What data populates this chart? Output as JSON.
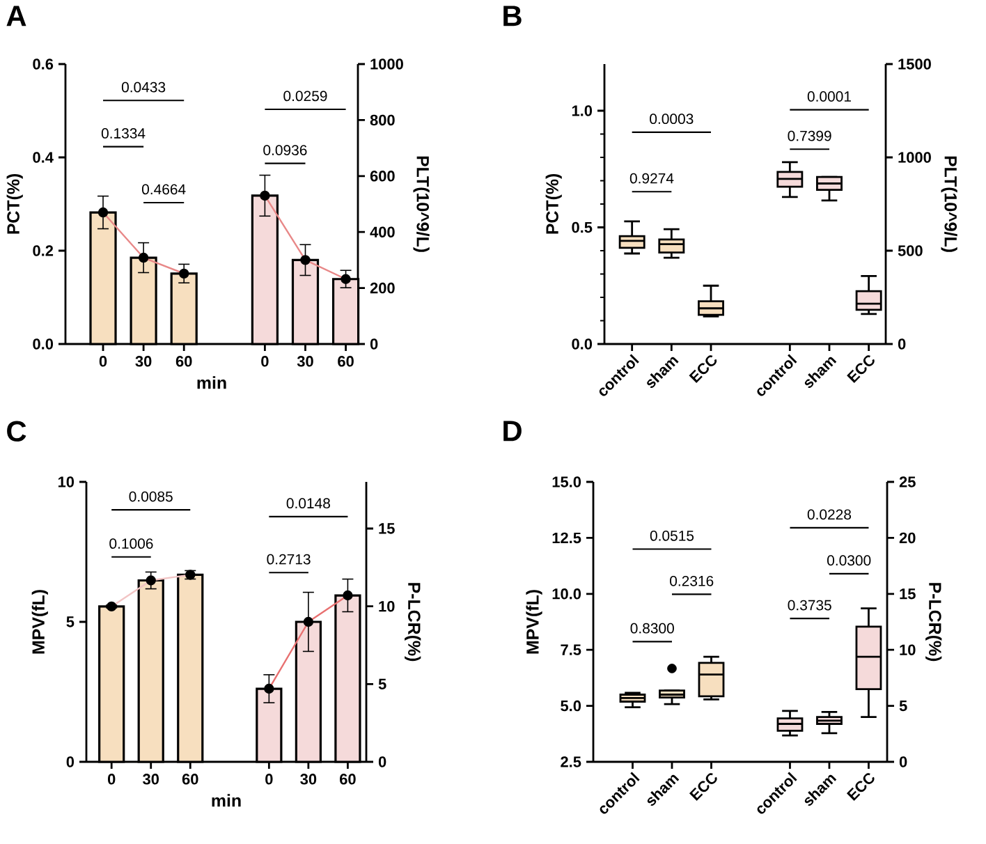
{
  "chart_data": [
    {
      "type": "bar",
      "title": "A",
      "xlabel": "min",
      "ylabel": "PCT(%)",
      "y2label": "PLT(10^9/L)",
      "categories": [
        "0",
        "30",
        "60",
        null,
        "0",
        "30",
        "60"
      ],
      "series": [
        {
          "color": "#f7dfbf",
          "values": [
            0.282,
            0.185,
            0.151,
            null,
            null,
            null,
            null
          ],
          "errors": [
            0.035,
            0.032,
            0.02,
            null,
            null,
            null,
            null
          ]
        },
        {
          "color": "#f5dada",
          "axis": "y2",
          "values": [
            null,
            null,
            null,
            null,
            530,
            300,
            232
          ],
          "errors": [
            null,
            null,
            null,
            null,
            73,
            55,
            31
          ]
        },
        {
          "type": "line",
          "color": "#e88888",
          "marker": "circle",
          "values": [
            0.282,
            0.185,
            0.151,
            null,
            null,
            null,
            null
          ]
        },
        {
          "type": "line",
          "color": "#e88888",
          "marker": "circle",
          "axis": "y2",
          "values": [
            null,
            null,
            null,
            null,
            530,
            300,
            232
          ]
        }
      ],
      "ylim": [
        0,
        0.6
      ],
      "yticks": [
        {
          "value": 0,
          "label": "0.0"
        },
        {
          "value": 0.2,
          "label": "0.2"
        },
        {
          "value": 0.4,
          "label": "0.4"
        },
        {
          "value": 0.6,
          "label": "0.6"
        }
      ],
      "y2lim": [
        0,
        1000
      ],
      "y2ticks": [
        0,
        200,
        400,
        600,
        800,
        1000
      ],
      "annotations": [
        "0.0433",
        "0.1334",
        "0.4664",
        "0.0259",
        "0.0936"
      ]
    },
    {
      "type": "box",
      "title": "B",
      "ylabel": "PCT(%)",
      "y2label": "PLT(10^9/L)",
      "categories": [
        "control",
        "sham",
        "ECC",
        null,
        "control",
        "sham",
        "ECC"
      ],
      "series": [
        {
          "color": "#f7dfbf",
          "boxes": [
            {
              "low": 0.388,
              "q1": 0.412,
              "median": 0.442,
              "q3": 0.462,
              "high": 0.526
            },
            {
              "low": 0.37,
              "q1": 0.392,
              "median": 0.428,
              "q3": 0.448,
              "high": 0.492
            },
            {
              "low": 0.118,
              "q1": 0.125,
              "median": 0.153,
              "q3": 0.183,
              "high": 0.25
            },
            null,
            null,
            null,
            null
          ]
        },
        {
          "color": "#f5dada",
          "axis": "y2",
          "boxes": [
            null,
            null,
            null,
            null,
            {
              "low": 788,
              "q1": 843,
              "median": 885,
              "q3": 922,
              "high": 974
            },
            {
              "low": 769,
              "q1": 826,
              "median": 860,
              "q3": 895,
              "high": 895
            },
            {
              "low": 161,
              "q1": 183,
              "median": 216,
              "q3": 283,
              "high": 364
            }
          ]
        }
      ],
      "ylim": [
        0,
        1.2
      ],
      "yticks": [
        {
          "value": 0,
          "label": "0.0"
        },
        {
          "value": 0.5,
          "label": "0.5"
        },
        {
          "value": 1,
          "label": "1.0"
        }
      ],
      "y2lim": [
        0,
        1500
      ],
      "y2ticks": [
        0,
        500,
        1000,
        1500
      ],
      "annotations": [
        "0.0003",
        "0.9274",
        "0.0001",
        "0.7399"
      ]
    },
    {
      "type": "bar",
      "title": "C",
      "xlabel": "min",
      "ylabel": "MPV(fL)",
      "y2label": "P-LCR(%)",
      "categories": [
        "0",
        "30",
        "60",
        null,
        "0",
        "30",
        "60"
      ],
      "series": [
        {
          "color": "#f7dfbf",
          "values": [
            5.55,
            6.48,
            6.68,
            null,
            null,
            null,
            null
          ],
          "errors": [
            0.05,
            0.3,
            0.15,
            null,
            null,
            null,
            null
          ]
        },
        {
          "color": "#f5dada",
          "axis": "y2",
          "values": [
            null,
            null,
            null,
            null,
            4.7,
            9,
            10.7
          ],
          "errors": [
            null,
            null,
            null,
            null,
            0.9,
            1.9,
            1.05
          ]
        },
        {
          "type": "line",
          "color": "#f2c4c4",
          "marker": "circle",
          "values": [
            5.55,
            6.48,
            6.68,
            null,
            null,
            null,
            null
          ]
        },
        {
          "type": "line",
          "color": "#e87070",
          "marker": "circle",
          "axis": "y2",
          "values": [
            null,
            null,
            null,
            null,
            4.7,
            9,
            10.7
          ]
        }
      ],
      "ylim": [
        0,
        10
      ],
      "yticks": [
        0,
        5,
        10
      ],
      "y2lim": [
        0,
        18
      ],
      "y2ticks": [
        0,
        5,
        10,
        15
      ],
      "annotations": [
        "0.0085",
        "0.1006",
        "0.0148",
        "0.2713"
      ]
    },
    {
      "type": "box",
      "title": "D",
      "ylabel": "MPV(fL)",
      "y2label": "P-LCR(%)",
      "categories": [
        "control",
        "sham",
        "ECC",
        null,
        "control",
        "sham",
        "ECC"
      ],
      "series": [
        {
          "color": "#f7dfbf",
          "boxes": [
            {
              "low": 4.94,
              "q1": 5.19,
              "median": 5.35,
              "q3": 5.5,
              "high": 5.58
            },
            {
              "low": 5.08,
              "q1": 5.37,
              "median": 5.5,
              "q3": 5.68,
              "high": 5.68,
              "outliers": [
                6.67
              ]
            },
            {
              "low": 5.29,
              "q1": 5.43,
              "median": 6.4,
              "q3": 6.92,
              "high": 7.19
            },
            null,
            null,
            null,
            null
          ]
        },
        {
          "color": "#f5dada",
          "axis": "y2",
          "boxes": [
            null,
            null,
            null,
            null,
            {
              "low": 2.36,
              "q1": 2.77,
              "median": 3.39,
              "q3": 3.88,
              "high": 4.55
            },
            {
              "low": 2.56,
              "q1": 3.39,
              "median": 3.68,
              "q3": 4.0,
              "high": 4.46
            },
            {
              "low": 4.0,
              "q1": 6.49,
              "median": 9.38,
              "q3": 12.07,
              "high": 13.7
            }
          ]
        }
      ],
      "ylim": [
        2.5,
        15
      ],
      "yticks": [
        {
          "value": 2.5,
          "label": "2.5"
        },
        {
          "value": 5,
          "label": "5.0"
        },
        {
          "value": 7.5,
          "label": "7.5"
        },
        {
          "value": 10,
          "label": "10.0"
        },
        {
          "value": 12.5,
          "label": "12.5"
        },
        {
          "value": 15,
          "label": "15.0"
        }
      ],
      "y2lim": [
        0,
        25
      ],
      "y2ticks": [
        0,
        5,
        10,
        15,
        20,
        25
      ],
      "annotations": [
        "0.0515",
        "0.2316",
        "0.8300",
        "0.0228",
        "0.0300",
        "0.3735"
      ]
    }
  ]
}
